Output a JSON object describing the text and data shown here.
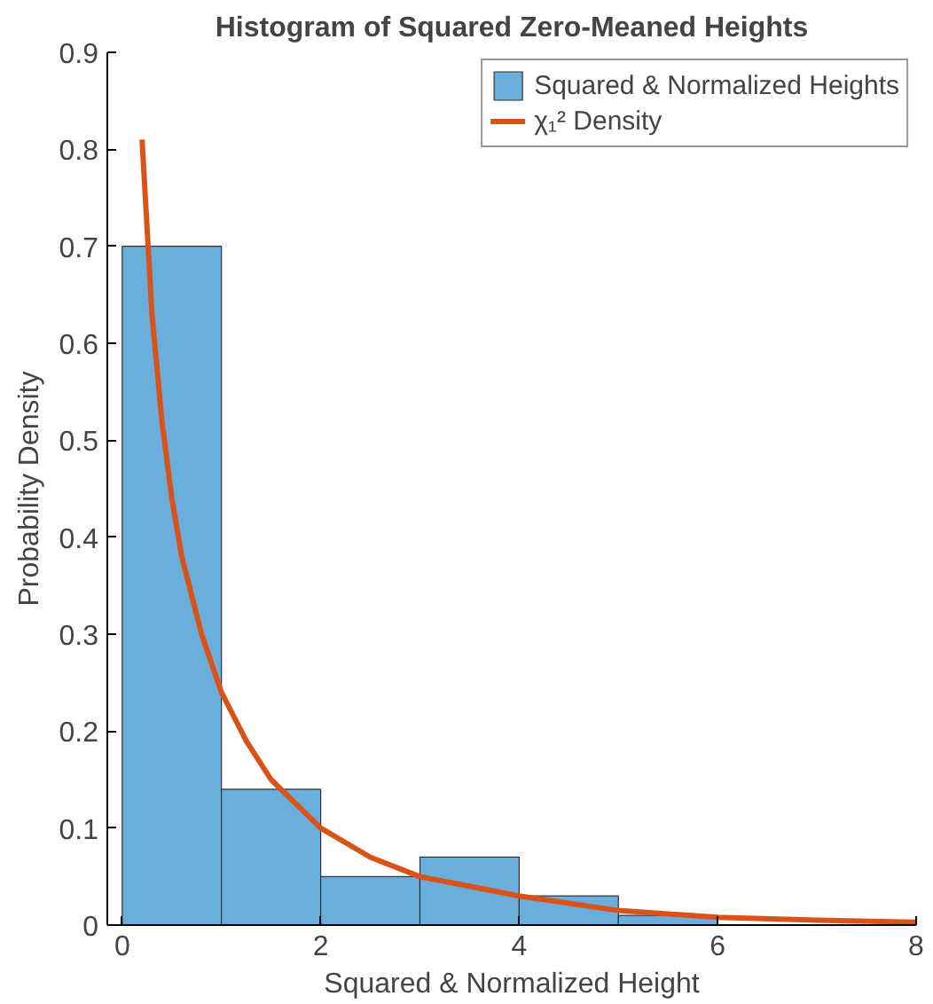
{
  "chart_data": {
    "type": "histogram",
    "title": "Histogram of Squared Zero-Meaned Heights",
    "xlabel": "Squared & Normalized Height",
    "ylabel": "Probability Density",
    "series": [
      {
        "name": "Squared & Normalized Heights",
        "color": "#6aaedb",
        "bins": [
          0,
          1,
          2,
          3,
          4,
          5,
          6
        ],
        "values": [
          0.7,
          0.14,
          0.05,
          0.07,
          0.03,
          0.01
        ]
      },
      {
        "name": "χ₁² Density",
        "type": "line",
        "color": "#d95319",
        "x": [
          0.2,
          0.3,
          0.4,
          0.5,
          0.6,
          0.8,
          1.0,
          1.25,
          1.5,
          2,
          2.5,
          3,
          3.5,
          4,
          5,
          6,
          7,
          8
        ],
        "values": [
          0.81,
          0.63,
          0.52,
          0.44,
          0.38,
          0.3,
          0.24,
          0.19,
          0.15,
          0.1,
          0.07,
          0.05,
          0.04,
          0.03,
          0.015,
          0.008,
          0.005,
          0.003
        ]
      }
    ],
    "xlim": [
      -0.15,
      8
    ],
    "ylim": [
      0,
      0.9
    ],
    "xticks": [
      0,
      2,
      4,
      6,
      8
    ],
    "yticks": [
      0,
      0.1,
      0.2,
      0.3,
      0.4,
      0.5,
      0.6,
      0.7,
      0.8,
      0.9
    ],
    "grid": false,
    "legend": "top right",
    "line_style": "solid"
  }
}
